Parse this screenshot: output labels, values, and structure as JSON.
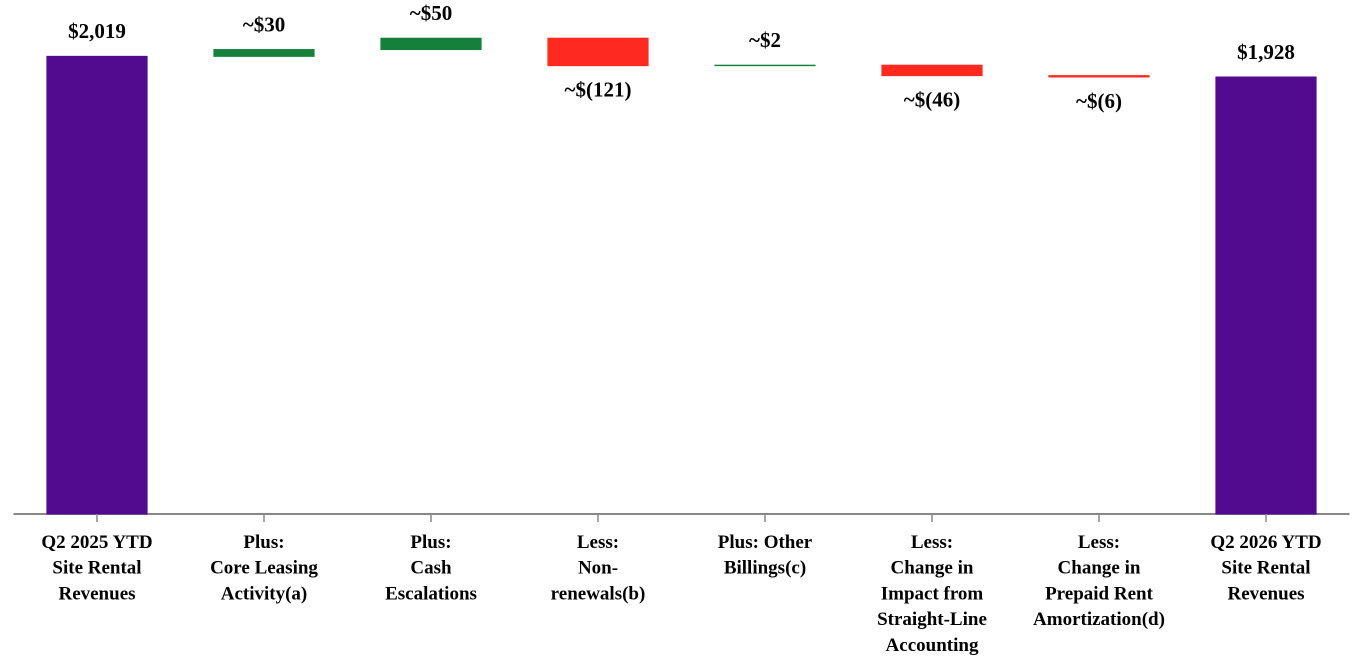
{
  "chart_data": {
    "type": "waterfall",
    "categories": [
      "Q2 2025 YTD\nSite Rental\nRevenues",
      "Plus:\nCore Leasing\nActivity(a)",
      "Plus:\nCash\nEscalations",
      "Less:\nNon-\nrenewals(b)",
      "Plus: Other\nBillings(c)",
      "Less:\nChange in\nImpact from\nStraight-Line\nAccounting",
      "Less:\nChange in\nPrepaid Rent\nAmortization(d)",
      "Q2 2026 YTD\nSite Rental\nRevenues"
    ],
    "values": [
      2019,
      30,
      50,
      -121,
      2,
      -46,
      -6,
      1928
    ],
    "value_labels": [
      "$2,019",
      "~$30",
      "~$50",
      "~$(121)",
      "~$2",
      "~$(46)",
      "~$(6)",
      "$1,928"
    ],
    "measure": [
      "absolute",
      "relative",
      "relative",
      "relative",
      "relative",
      "relative",
      "relative",
      "absolute"
    ],
    "total_color": "#520b8e",
    "increase_color": "#14803c",
    "decrease_color": "#ff2a1f",
    "ylim": [
      0,
      2250
    ]
  }
}
